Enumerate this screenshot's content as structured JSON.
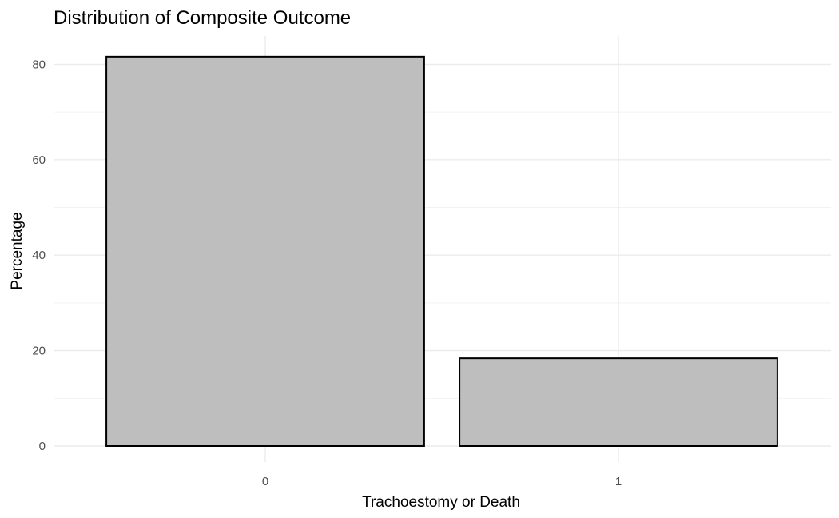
{
  "chart_data": {
    "type": "bar",
    "title": "Distribution of Composite Outcome",
    "xlabel": "Trachoestomy or Death",
    "ylabel": "Percentage",
    "categories": [
      "0",
      "1"
    ],
    "values": [
      81.6,
      18.4
    ],
    "ylim": [
      0,
      85
    ],
    "yticks": [
      0,
      20,
      40,
      60,
      80
    ],
    "grid": true,
    "legend": "none",
    "bar_fill": "#bebebe",
    "bar_stroke": "#000000"
  }
}
